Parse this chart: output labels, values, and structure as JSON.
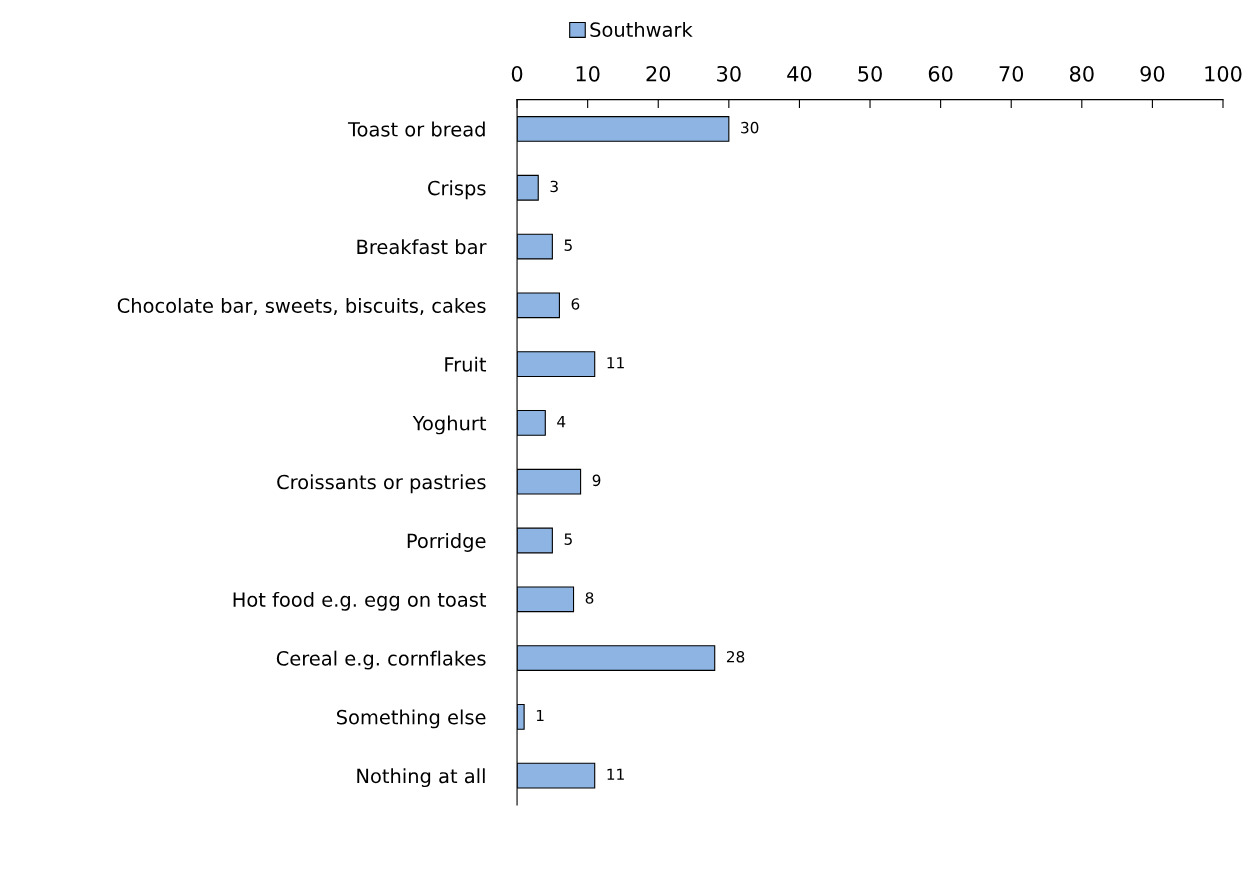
{
  "chart_data": {
    "type": "bar",
    "orientation": "horizontal",
    "categories": [
      "Toast or bread",
      "Crisps",
      "Breakfast bar",
      "Chocolate bar, sweets, biscuits, cakes",
      "Fruit",
      "Yoghurt",
      "Croissants or pastries",
      "Porridge",
      "Hot food e.g. egg on toast",
      "Cereal e.g. cornflakes",
      "Something else",
      "Nothing at all"
    ],
    "series": [
      {
        "name": "Southwark",
        "color": "#8db4e2",
        "values": [
          30,
          3,
          5,
          6,
          11,
          4,
          9,
          5,
          8,
          28,
          1,
          11
        ]
      }
    ],
    "xlim": [
      0,
      100
    ],
    "xticks": [
      0,
      10,
      20,
      30,
      40,
      50,
      60,
      70,
      80,
      90,
      100
    ],
    "data_labels": true,
    "legend": "top",
    "grid": false
  }
}
